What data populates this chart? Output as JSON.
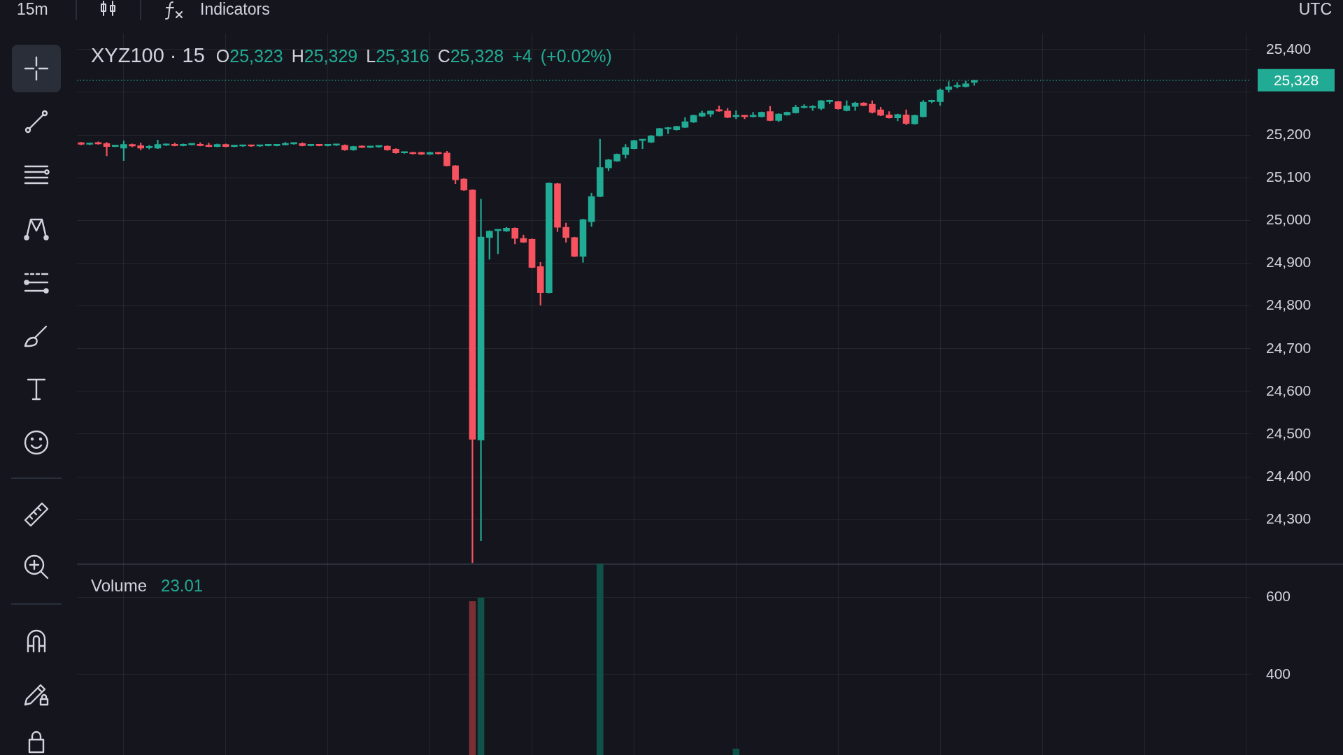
{
  "chart_data": [
    {
      "type": "candlestick",
      "title": "XYZ100 · 15",
      "subtitle": "O25,323 H25,329 L25,316 C25,328 +4 (+0.02%)",
      "annotations": [
        "15m",
        "Indicators",
        "UTC"
      ],
      "categories": [
        null,
        null,
        null,
        null,
        null,
        null,
        null,
        null,
        null,
        null,
        null,
        null,
        null,
        null,
        null,
        null,
        null,
        null,
        null,
        null,
        null,
        null,
        null,
        null,
        null,
        null,
        null,
        null,
        null,
        null,
        null,
        null,
        null,
        null,
        null,
        null,
        null,
        null,
        null,
        null,
        null,
        null,
        null,
        null,
        null,
        null,
        null,
        null,
        null,
        null,
        null,
        null,
        null,
        null,
        null,
        null,
        null,
        null,
        null,
        null,
        null,
        null,
        null,
        null,
        null,
        null,
        null,
        null,
        null,
        null,
        null,
        null,
        null,
        null,
        null,
        null,
        null,
        null,
        null,
        null,
        null,
        null,
        null,
        null,
        null,
        null,
        null,
        null,
        null,
        null,
        null,
        null,
        null,
        null,
        null,
        null,
        null,
        null,
        null,
        null,
        null,
        null,
        null,
        null,
        null,
        null,
        null,
        null,
        null,
        null,
        null,
        null,
        null,
        null,
        null,
        null,
        null,
        null,
        null,
        null,
        null,
        null,
        null,
        null,
        null,
        null,
        null,
        null,
        null,
        null,
        null,
        null,
        null,
        null,
        null,
        null,
        null,
        null
      ],
      "ohlc": [
        [
          25182,
          25183,
          25177,
          25178
        ],
        [
          25178,
          25181,
          25177,
          25180
        ],
        [
          25181,
          25184,
          25178,
          25179
        ],
        [
          25180,
          25183,
          25151,
          25173
        ],
        [
          25173,
          25175,
          25172,
          25174
        ],
        [
          25169,
          25186,
          25140,
          25178
        ],
        [
          25178,
          25179,
          25172,
          25174
        ],
        [
          25175,
          25181,
          25165,
          25169
        ],
        [
          25170,
          25176,
          25167,
          25172
        ],
        [
          25169,
          25188,
          25168,
          25178
        ],
        [
          25176,
          25179,
          25175,
          25178
        ],
        [
          25178,
          25181,
          25174,
          25175
        ],
        [
          25175,
          25179,
          25174,
          25178
        ],
        [
          25177,
          25179,
          25176,
          25178
        ],
        [
          25178,
          25182,
          25174,
          25175
        ],
        [
          25176,
          25181,
          25172,
          25173
        ],
        [
          25173,
          25179,
          25172,
          25178
        ],
        [
          25178,
          25179,
          25172,
          25173
        ],
        [
          25173,
          25175,
          25172,
          25174
        ],
        [
          25174,
          25176,
          25173,
          25175
        ],
        [
          25175,
          25176,
          25173,
          25174
        ],
        [
          25174,
          25176,
          25173,
          25175
        ],
        [
          25175,
          25177,
          25174,
          25176
        ],
        [
          25175,
          25177,
          25174,
          25176
        ],
        [
          25177,
          25183,
          25176,
          25180
        ],
        [
          25179,
          25181,
          25178,
          25180
        ],
        [
          25180,
          25182,
          25174,
          25175
        ],
        [
          25175,
          25177,
          25174,
          25176
        ],
        [
          25177,
          25178,
          25174,
          25175
        ],
        [
          25175,
          25177,
          25174,
          25176
        ],
        [
          25176,
          25178,
          25175,
          25177
        ],
        [
          25176,
          25177,
          25164,
          25165
        ],
        [
          25165,
          25174,
          25164,
          25173
        ],
        [
          25174,
          25175,
          25170,
          25171
        ],
        [
          25171,
          25173,
          25170,
          25172
        ],
        [
          25172,
          25174,
          25171,
          25173
        ],
        [
          25174,
          25175,
          25164,
          25165
        ],
        [
          25167,
          25168,
          25157,
          25158
        ],
        [
          25158,
          25160,
          25157,
          25159
        ],
        [
          25159,
          25160,
          25155,
          25156
        ],
        [
          25159,
          25160,
          25154,
          25155
        ],
        [
          25155,
          25160,
          25154,
          25159
        ],
        [
          25159,
          25160,
          25155,
          25156
        ],
        [
          25158,
          25162,
          25127,
          25128
        ],
        [
          25128,
          25129,
          25086,
          25095
        ],
        [
          25097,
          25098,
          25070,
          25071
        ],
        [
          25071,
          25072,
          24199,
          24488
        ],
        [
          24486,
          25050,
          24250,
          24961
        ],
        [
          24960,
          24976,
          24909,
          24975
        ],
        [
          24976,
          24978,
          24922,
          24977
        ],
        [
          24975,
          24984,
          24974,
          24982
        ],
        [
          24982,
          24983,
          24945,
          24958
        ],
        [
          24958,
          24966,
          24948,
          24949
        ],
        [
          24956,
          24957,
          24889,
          24890
        ],
        [
          24892,
          24902,
          24802,
          24831
        ],
        [
          24831,
          25088,
          24830,
          25087
        ],
        [
          25086,
          25087,
          24974,
          24984
        ],
        [
          24984,
          24994,
          24949,
          24960
        ],
        [
          24960,
          24961,
          24915,
          24916
        ],
        [
          24916,
          25003,
          24902,
          25002
        ],
        [
          24997,
          25064,
          24986,
          25056
        ],
        [
          25056,
          25190,
          25055,
          25124
        ],
        [
          25123,
          25143,
          25116,
          25142
        ],
        [
          25139,
          25156,
          25138,
          25155
        ],
        [
          25154,
          25178,
          25146,
          25171
        ],
        [
          25168,
          25188,
          25167,
          25187
        ],
        [
          25187,
          25189,
          25168,
          25188
        ],
        [
          25183,
          25199,
          25182,
          25198
        ],
        [
          25198,
          25216,
          25197,
          25215
        ],
        [
          25214,
          25218,
          25203,
          25215
        ],
        [
          25212,
          25221,
          25211,
          25220
        ],
        [
          25218,
          25241,
          25217,
          25231
        ],
        [
          25230,
          25247,
          25229,
          25246
        ],
        [
          25244,
          25256,
          25243,
          25251
        ],
        [
          25249,
          25257,
          25243,
          25256
        ],
        [
          25257,
          25268,
          25255,
          25256
        ],
        [
          25256,
          25262,
          25240,
          25241
        ],
        [
          25243,
          25257,
          25238,
          25244
        ],
        [
          25245,
          25246,
          25238,
          25243
        ],
        [
          25243,
          25253,
          25242,
          25244
        ],
        [
          25243,
          25254,
          25242,
          25253
        ],
        [
          25255,
          25267,
          25233,
          25234
        ],
        [
          25234,
          25250,
          25231,
          25249
        ],
        [
          25247,
          25254,
          25246,
          25253
        ],
        [
          25252,
          25270,
          25251,
          25265
        ],
        [
          25264,
          25271,
          25263,
          25265
        ],
        [
          25264,
          25269,
          25257,
          25265
        ],
        [
          25262,
          25281,
          25259,
          25280
        ],
        [
          25278,
          25282,
          25273,
          25279
        ],
        [
          25278,
          25279,
          25260,
          25261
        ],
        [
          25257,
          25280,
          25256,
          25268
        ],
        [
          25267,
          25277,
          25257,
          25275
        ],
        [
          25275,
          25276,
          25268,
          25269
        ],
        [
          25272,
          25280,
          25251,
          25253
        ],
        [
          25259,
          25265,
          25245,
          25246
        ],
        [
          25247,
          25255,
          25239,
          25240
        ],
        [
          25240,
          25249,
          25233,
          25248
        ],
        [
          25247,
          25259,
          25224,
          25227
        ],
        [
          25226,
          25247,
          25225,
          25246
        ],
        [
          25243,
          25281,
          25242,
          25277
        ],
        [
          25278,
          25282,
          25275,
          25281
        ],
        [
          25278,
          25308,
          25269,
          25305
        ],
        [
          25306,
          25325,
          25300,
          25313
        ],
        [
          25313,
          25323,
          25310,
          25314
        ],
        [
          25313,
          25326,
          25312,
          25320
        ],
        [
          25323,
          25329,
          25316,
          25328
        ],
        null,
        null,
        null,
        null,
        null,
        null,
        null,
        null,
        null,
        null,
        null,
        null,
        null,
        null,
        null,
        null,
        null,
        null,
        null,
        null,
        null,
        null,
        null,
        null,
        null,
        null,
        null,
        null,
        null,
        null,
        null,
        null
      ],
      "ylim": [
        24195,
        25438
      ],
      "yticks": [
        {
          "value": 24300,
          "label": "24,300"
        },
        {
          "value": 24400,
          "label": "24,400"
        },
        {
          "value": 24500,
          "label": "24,500"
        },
        {
          "value": 24600,
          "label": "24,600"
        },
        {
          "value": 24700,
          "label": "24,700"
        },
        {
          "value": 24800,
          "label": "24,800"
        },
        {
          "value": 24900,
          "label": "24,900"
        },
        {
          "value": 25000,
          "label": "25,000"
        },
        {
          "value": 25100,
          "label": "25,100"
        },
        {
          "value": 25200,
          "label": "25,200"
        },
        {
          "value": 25300,
          "label": null
        },
        {
          "value": 25400,
          "label": "25,400"
        }
      ],
      "ref_lines": [
        {
          "axis": "y",
          "value": 25328,
          "label": "25,328",
          "color": "#22ab94",
          "line_style": "dotted"
        }
      ],
      "grid": true,
      "tick_labels": "y"
    },
    {
      "type": "bar",
      "title": "Volume",
      "subtitle": "23.01",
      "categories": [
        null,
        null,
        null,
        null,
        null,
        null,
        null,
        null,
        null,
        null,
        null,
        null,
        null,
        null,
        null,
        null,
        null,
        null,
        null,
        null,
        null,
        null,
        null,
        null,
        null,
        null,
        null,
        null,
        null,
        null,
        null,
        null,
        null,
        null,
        null,
        null,
        null,
        null,
        null,
        null,
        null,
        null,
        null,
        null,
        null,
        null,
        null,
        null,
        null,
        null,
        null,
        null,
        null,
        null,
        null,
        null,
        null,
        null,
        null,
        null,
        null,
        null,
        null,
        null,
        null,
        null,
        null,
        null,
        null,
        null,
        null,
        null,
        null,
        null,
        null,
        null,
        null,
        null,
        null,
        null,
        null,
        null,
        null,
        null,
        null,
        null,
        null,
        null,
        null,
        null,
        null,
        null,
        null,
        null,
        null,
        null,
        null,
        null,
        null,
        null,
        null,
        null,
        null,
        null,
        null,
        null,
        null,
        null,
        null,
        null,
        null,
        null,
        null,
        null,
        null,
        null,
        null,
        null,
        null,
        null,
        null,
        null,
        null,
        null,
        null,
        null,
        null,
        null,
        null,
        null,
        null,
        null,
        null,
        null,
        null,
        null,
        null,
        null
      ],
      "values": [
        null,
        null,
        null,
        null,
        null,
        null,
        null,
        null,
        null,
        null,
        null,
        null,
        null,
        null,
        null,
        null,
        null,
        null,
        null,
        null,
        null,
        null,
        null,
        null,
        null,
        null,
        null,
        null,
        null,
        null,
        null,
        null,
        null,
        null,
        null,
        null,
        null,
        null,
        null,
        null,
        null,
        null,
        null,
        null,
        null,
        null,
        589,
        598,
        null,
        null,
        null,
        null,
        null,
        null,
        null,
        null,
        null,
        null,
        null,
        null,
        null,
        686,
        null,
        null,
        null,
        null,
        null,
        null,
        null,
        null,
        null,
        null,
        null,
        null,
        null,
        null,
        null,
        207,
        null,
        null,
        null,
        null,
        null,
        null,
        null,
        null,
        null,
        null,
        null,
        null,
        null,
        null,
        null,
        null,
        null,
        null,
        null,
        null,
        null,
        null,
        null,
        null,
        null,
        null,
        null,
        null,
        null,
        null,
        null,
        null,
        null,
        null,
        null,
        null,
        null,
        null,
        null,
        null,
        null,
        null,
        null,
        null,
        null,
        null,
        null,
        null,
        null,
        null,
        null,
        null,
        null,
        null,
        null,
        null,
        null,
        null,
        null,
        null
      ],
      "colors": [
        null,
        null,
        null,
        null,
        null,
        null,
        null,
        null,
        null,
        null,
        null,
        null,
        null,
        null,
        null,
        null,
        null,
        null,
        null,
        null,
        null,
        null,
        null,
        null,
        null,
        null,
        null,
        null,
        null,
        null,
        null,
        null,
        null,
        null,
        null,
        null,
        null,
        null,
        null,
        null,
        null,
        null,
        null,
        null,
        null,
        null,
        "#7a2f35",
        "#0f524a",
        null,
        null,
        null,
        null,
        null,
        null,
        null,
        null,
        null,
        null,
        null,
        null,
        null,
        "#0f524a",
        null,
        null,
        null,
        null,
        null,
        null,
        null,
        null,
        null,
        null,
        null,
        null,
        null,
        null,
        null,
        "#0f524a",
        null,
        null,
        null,
        null,
        null,
        null,
        null,
        null,
        null,
        null,
        null,
        null,
        null,
        null,
        null,
        null,
        null,
        null,
        null,
        null,
        null,
        null,
        null,
        null,
        null,
        null,
        null,
        null,
        null,
        null,
        null,
        null,
        null,
        null,
        null,
        null,
        null,
        null,
        null,
        null,
        null,
        null,
        null,
        null,
        null,
        null,
        null,
        null,
        null,
        null,
        null,
        null,
        null,
        null,
        null,
        null,
        null,
        null,
        null,
        null
      ],
      "ylim": [
        189,
        686
      ],
      "yticks": [
        400,
        600
      ],
      "grid": true,
      "tick_labels": "y"
    }
  ]
}
